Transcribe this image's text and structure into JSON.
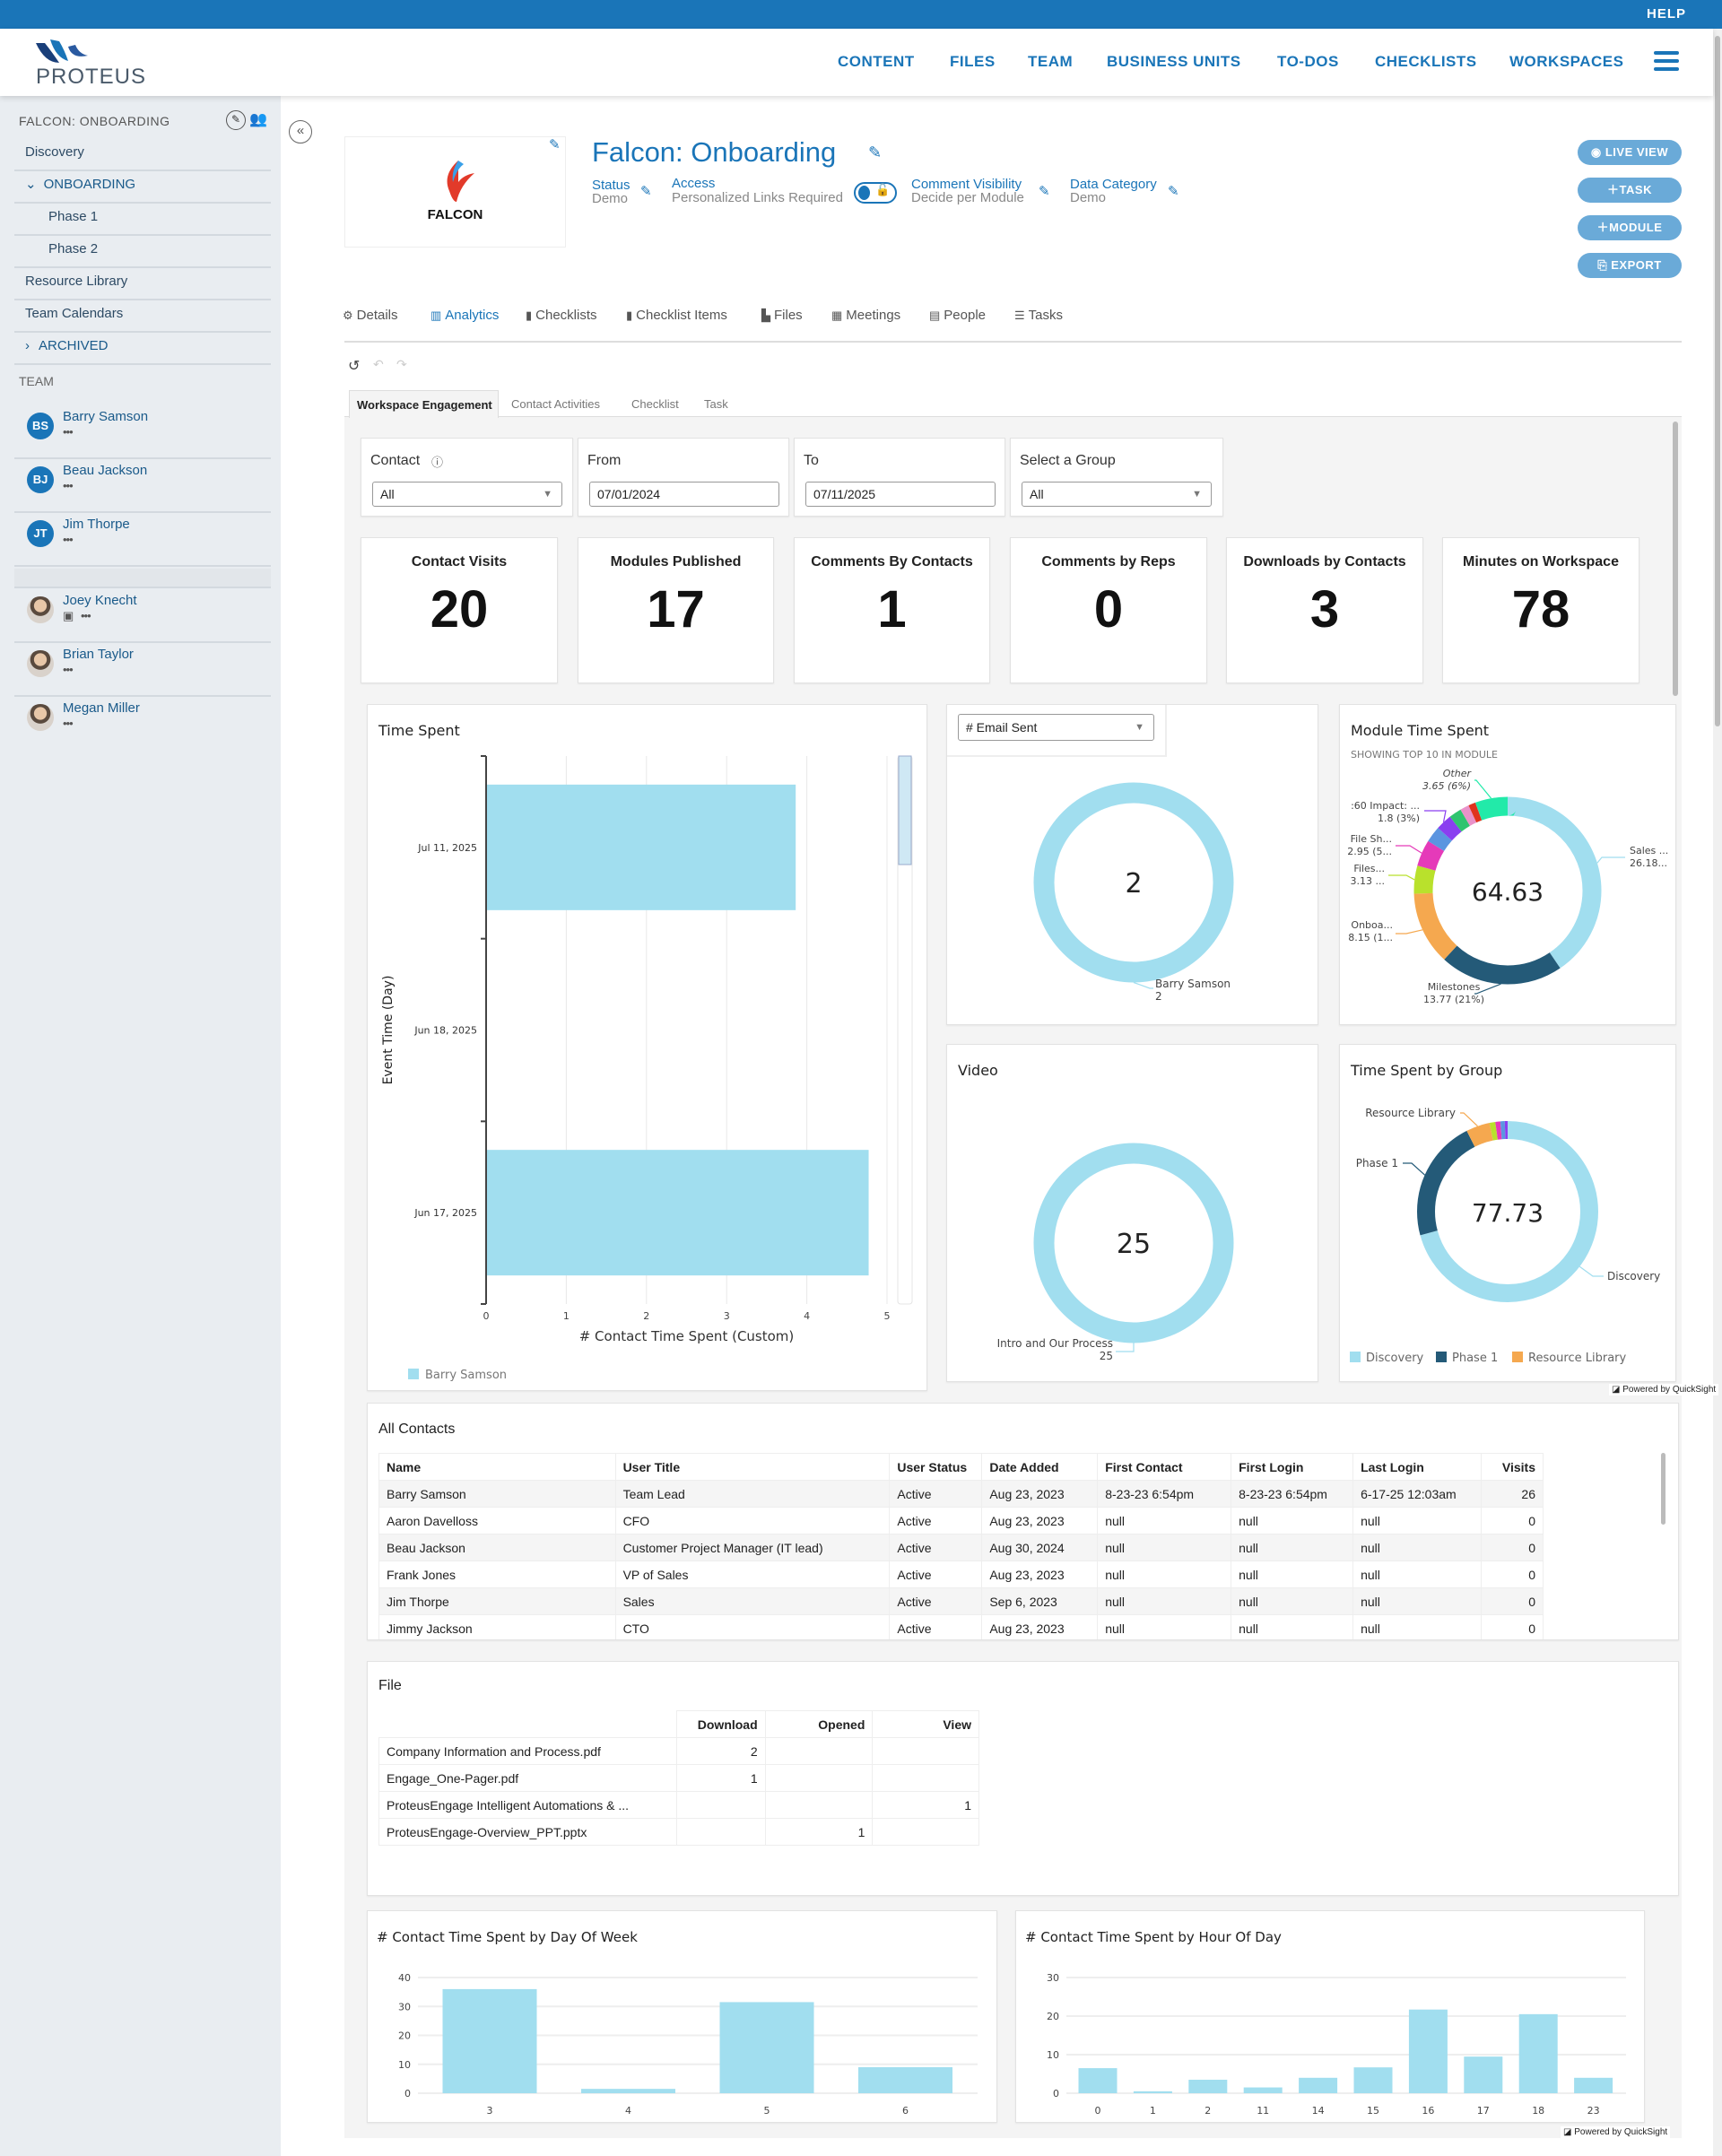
{
  "topbar": {
    "help": "HELP"
  },
  "header": {
    "logo": "PROTEUS",
    "nav": [
      "CONTENT",
      "FILES",
      "TEAM",
      "BUSINESS UNITS",
      "TO-DOS",
      "CHECKLISTS",
      "WORKSPACES"
    ],
    "menu_icon": "hamburger-icon"
  },
  "sidebar": {
    "workspace": "FALCON: ONBOARDING",
    "items": [
      "Discovery",
      "ONBOARDING",
      "Phase 1",
      "Phase 2",
      "Resource Library",
      "Team Calendars",
      "ARCHIVED"
    ],
    "team_heading": "TEAM",
    "team": [
      {
        "initials": "BS",
        "name": "Barry Samson",
        "more": "•••"
      },
      {
        "initials": "BJ",
        "name": "Beau Jackson",
        "more": "•••"
      },
      {
        "initials": "JT",
        "name": "Jim Thorpe",
        "more": "•••"
      },
      {
        "initials": "",
        "name": "Joey Knecht",
        "more": "•••"
      },
      {
        "initials": "",
        "name": "Brian Taylor",
        "more": "•••"
      },
      {
        "initials": "",
        "name": "Megan Miller",
        "more": "•••"
      }
    ]
  },
  "workspace": {
    "logo_text": "FALCON",
    "title": "Falcon: Onboarding",
    "meta": {
      "status_label": "Status",
      "status_value": "Demo",
      "access_label": "Access",
      "access_value": "Personalized Links Required",
      "comment_label": "Comment Visibility",
      "comment_value": "Decide per Module",
      "category_label": "Data Category",
      "category_value": "Demo"
    },
    "actions": [
      "LIVE VIEW",
      "TASK",
      "MODULE",
      "EXPORT"
    ],
    "tabs": [
      "Details",
      "Analytics",
      "Checklists",
      "Checklist Items",
      "Files",
      "Meetings",
      "People",
      "Tasks"
    ],
    "active_tab": "Analytics",
    "accent": "#1a75b8"
  },
  "analytics": {
    "subtabs": [
      "Workspace Engagement",
      "Contact Activities",
      "Checklist",
      "Task"
    ],
    "filters": [
      {
        "label": "Contact",
        "value": "All",
        "type": "select"
      },
      {
        "label": "From",
        "value": "07/01/2024",
        "type": "date"
      },
      {
        "label": "To",
        "value": "07/11/2025",
        "type": "date"
      },
      {
        "label": "Select a Group",
        "value": "All",
        "type": "select"
      }
    ],
    "kpis": [
      {
        "label": "Contact Visits",
        "value": "20"
      },
      {
        "label": "Modules Published",
        "value": "17"
      },
      {
        "label": "Comments By Contacts",
        "value": "1"
      },
      {
        "label": "Comments by Reps",
        "value": "0"
      },
      {
        "label": "Downloads by Contacts",
        "value": "3"
      },
      {
        "label": "Minutes on Workspace",
        "value": "78"
      }
    ],
    "powered_by": "Powered by QuickSight"
  },
  "chart_data": [
    {
      "type": "bar",
      "orientation": "horizontal",
      "title": "Time Spent",
      "categories": [
        "Jul 11, 2025",
        "Jun 18, 2025",
        "Jun 17, 2025"
      ],
      "series": [
        {
          "name": "Barry Samson",
          "values": [
            3.85,
            0,
            4.76
          ]
        }
      ],
      "xlabel": "# Contact Time Spent (Custom)",
      "ylabel": "Event Time (Day)",
      "xlim": [
        0,
        5
      ],
      "xticks": [
        "0",
        "1",
        "2",
        "3",
        "4",
        "5"
      ],
      "grid": true,
      "legend": "bottom-left",
      "color": "#a1deef"
    },
    {
      "type": "pie",
      "variant": "donut",
      "selector": "# Email Sent",
      "center_label": "2",
      "slices": [
        {
          "label": "Barry Samson",
          "value": 2,
          "value_label": "2",
          "color": "#a1deef"
        }
      ]
    },
    {
      "type": "pie",
      "variant": "donut",
      "title": "Module Time Spent",
      "subtitle": "SHOWING TOP 10 IN MODULE",
      "center_label": "64.63",
      "slices": [
        {
          "label": "Sales ...",
          "value": 26.18,
          "value_label": "26.18...",
          "color": "#a1deef"
        },
        {
          "label": "Milestones",
          "value": 13.77,
          "value_label": "13.77 (21%)",
          "color": "#245a78"
        },
        {
          "label": "Onboa...",
          "value": 8.15,
          "value_label": "8.15 (1...",
          "color": "#f5a84f"
        },
        {
          "label": "Files...",
          "value": 3.13,
          "value_label": "3.13 ...",
          "color": "#b9e12c"
        },
        {
          "label": "File Sh...",
          "value": 2.95,
          "value_label": "2.95 (5...",
          "color": "#e53ab9"
        },
        {
          "value": 1.8,
          "color": "#5b95e0"
        },
        {
          "label": ":60 Impact: ...",
          "value": 1.8,
          "value_label": "1.8 (3%)",
          "color": "#8a3ff0"
        },
        {
          "value": 1.4,
          "color": "#2fc46f"
        },
        {
          "value": 1.0,
          "color": "#ea92c9"
        },
        {
          "value": 0.8,
          "color": "#e0331e"
        },
        {
          "label": "Other",
          "value": 3.65,
          "value_label": "3.65 (6%)",
          "color": "#22eaa9"
        }
      ]
    },
    {
      "type": "pie",
      "variant": "donut",
      "title": "Video",
      "center_label": "25",
      "slices": [
        {
          "label": "Intro and Our Process",
          "value": 25,
          "value_label": "25",
          "color": "#a1deef"
        }
      ]
    },
    {
      "type": "pie",
      "variant": "donut",
      "title": "Time Spent by Group",
      "center_label": "77.73",
      "legend": "bottom",
      "slices": [
        {
          "label": "Discovery",
          "value": 55.0,
          "color": "#a1deef"
        },
        {
          "label": "Phase 1",
          "value": 16.9,
          "color": "#245a78"
        },
        {
          "label": "Resource Library",
          "value": 3.3,
          "color": "#f5a84f"
        },
        {
          "value": 0.8,
          "color": "#b9e12c"
        },
        {
          "value": 0.7,
          "color": "#e53ab9"
        },
        {
          "value": 0.6,
          "color": "#5b95e0"
        },
        {
          "value": 0.43,
          "color": "#8a3ff0"
        }
      ]
    },
    {
      "type": "bar",
      "title": "# Contact Time Spent by Day Of Week",
      "categories": [
        "3",
        "4",
        "5",
        "6"
      ],
      "values": [
        36,
        1.5,
        31.5,
        9
      ],
      "ylim": [
        0,
        40
      ],
      "yticks": [
        "0",
        "10",
        "20",
        "30",
        "40"
      ],
      "grid": true,
      "color": "#a1deef"
    },
    {
      "type": "bar",
      "title": "# Contact Time Spent by Hour Of Day",
      "categories": [
        "0",
        "1",
        "2",
        "11",
        "14",
        "15",
        "16",
        "17",
        "18",
        "23"
      ],
      "values": [
        6.5,
        0.5,
        3.5,
        1.5,
        4,
        6.7,
        21.7,
        9.5,
        20.5,
        4
      ],
      "ylim": [
        0,
        30
      ],
      "yticks": [
        "0",
        "10",
        "20",
        "30"
      ],
      "grid": true,
      "color": "#a1deef"
    }
  ],
  "contacts_table": {
    "title": "All Contacts",
    "columns": [
      "Name",
      "User Title",
      "User Status",
      "Date Added",
      "First Contact",
      "First Login",
      "Last Login",
      "Visits"
    ],
    "rows": [
      [
        "Barry Samson",
        "Team Lead",
        "Active",
        "Aug 23, 2023",
        "8-23-23 6:54pm",
        "8-23-23 6:54pm",
        "6-17-25 12:03am",
        "26"
      ],
      [
        "Aaron Davelloss",
        "CFO",
        "Active",
        "Aug 23, 2023",
        "null",
        "null",
        "null",
        "0"
      ],
      [
        "Beau Jackson",
        "Customer Project Manager (IT lead)",
        "Active",
        "Aug 30, 2024",
        "null",
        "null",
        "null",
        "0"
      ],
      [
        "Frank Jones",
        "VP of Sales",
        "Active",
        "Aug 23, 2023",
        "null",
        "null",
        "null",
        "0"
      ],
      [
        "Jim Thorpe",
        "Sales",
        "Active",
        "Sep 6, 2023",
        "null",
        "null",
        "null",
        "0"
      ],
      [
        "Jimmy Jackson",
        "CTO",
        "Active",
        "Aug 23, 2023",
        "null",
        "null",
        "null",
        "0"
      ]
    ]
  },
  "file_table": {
    "title": "File",
    "columns": [
      "",
      "Download",
      "Opened",
      "View"
    ],
    "rows": [
      [
        "Company Information and Process.pdf",
        "2",
        "",
        ""
      ],
      [
        "Engage_One-Pager.pdf",
        "1",
        "",
        ""
      ],
      [
        "ProteusEngage Intelligent Automations & ...",
        "",
        "",
        "1"
      ],
      [
        "ProteusEngage-Overview_PPT.pptx",
        "",
        "1",
        ""
      ]
    ]
  }
}
